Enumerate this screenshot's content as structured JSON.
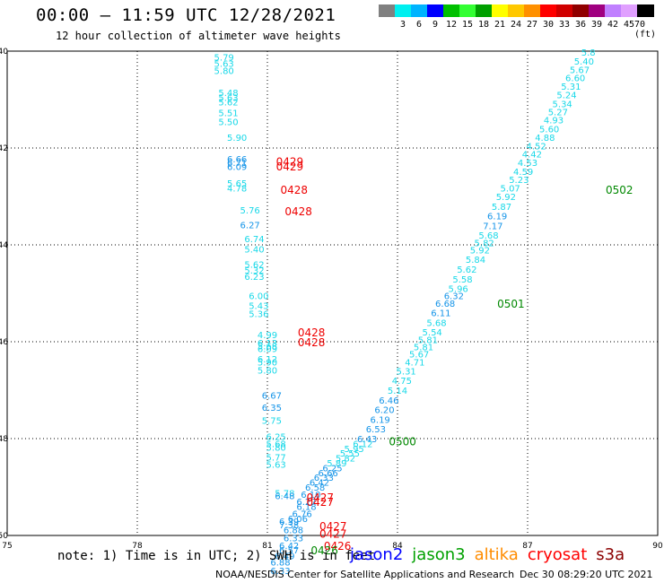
{
  "header": {
    "title": "00:00 – 11:59 UTC 12/28/2021",
    "subtitle": "12 hour collection of altimeter wave heights"
  },
  "color_scale": {
    "unit": "(ft)",
    "swatches": [
      {
        "color": "#808080",
        "label": ""
      },
      {
        "color": "#00f0f0",
        "label": "3"
      },
      {
        "color": "#00b4ff",
        "label": "6"
      },
      {
        "color": "#0000ff",
        "label": "9"
      },
      {
        "color": "#00c000",
        "label": "12"
      },
      {
        "color": "#33ff33",
        "label": "15"
      },
      {
        "color": "#00a000",
        "label": "18"
      },
      {
        "color": "#ffff00",
        "label": "21"
      },
      {
        "color": "#ffc800",
        "label": "24"
      },
      {
        "color": "#ff9000",
        "label": "27"
      },
      {
        "color": "#ff0000",
        "label": "30"
      },
      {
        "color": "#d00000",
        "label": "33"
      },
      {
        "color": "#900000",
        "label": "36"
      },
      {
        "color": "#a00080",
        "label": "39"
      },
      {
        "color": "#c080ff",
        "label": "42"
      },
      {
        "color": "#e0a0ff",
        "label": "45"
      },
      {
        "color": "#000000",
        "label": "70 (ft)"
      }
    ]
  },
  "chart_data": {
    "type": "scatter",
    "title": "00:00 – 11:59 UTC 12/28/2021",
    "subtitle": "12 hour collection of altimeter wave heights",
    "xlim": [
      75,
      90
    ],
    "ylim": [
      -50,
      -40
    ],
    "xticks": [
      "75",
      "78",
      "81",
      "84",
      "87",
      "90"
    ],
    "yticks": [
      "-40",
      "-42",
      "-44",
      "-46",
      "-48",
      "-50"
    ],
    "ytick_values": [
      -40,
      -42,
      -44,
      -46,
      -48,
      -50
    ],
    "xtick_values": [
      75,
      78,
      81,
      84,
      87,
      90
    ],
    "grid": true,
    "colors": {
      "light": "#18d8e8",
      "mid": "#1494e8",
      "time": "#ee0000",
      "jason3_time": "#008800"
    },
    "swh_points": [
      {
        "x": 80.0,
        "y": -40.12,
        "v": "5.79",
        "c": "light"
      },
      {
        "x": 80.0,
        "y": -40.25,
        "v": "5.63",
        "c": "light"
      },
      {
        "x": 80.0,
        "y": -40.4,
        "v": "5.80",
        "c": "light"
      },
      {
        "x": 80.1,
        "y": -40.85,
        "v": "5.48",
        "c": "light"
      },
      {
        "x": 80.1,
        "y": -40.95,
        "v": "5.63",
        "c": "light"
      },
      {
        "x": 80.1,
        "y": -41.05,
        "v": "5.62",
        "c": "light"
      },
      {
        "x": 80.1,
        "y": -41.27,
        "v": "5.51",
        "c": "light"
      },
      {
        "x": 80.1,
        "y": -41.45,
        "v": "5.50",
        "c": "light"
      },
      {
        "x": 80.3,
        "y": -41.78,
        "v": "5.90",
        "c": "light"
      },
      {
        "x": 80.3,
        "y": -42.22,
        "v": "6.66",
        "c": "mid"
      },
      {
        "x": 80.3,
        "y": -42.3,
        "v": "6.71",
        "c": "mid"
      },
      {
        "x": 80.3,
        "y": -42.38,
        "v": "6.09",
        "c": "mid"
      },
      {
        "x": 80.3,
        "y": -42.72,
        "v": "5.65",
        "c": "light"
      },
      {
        "x": 80.3,
        "y": -42.82,
        "v": "4.78",
        "c": "light"
      },
      {
        "x": 80.6,
        "y": -43.28,
        "v": "5.76",
        "c": "light"
      },
      {
        "x": 80.6,
        "y": -43.58,
        "v": "6.27",
        "c": "mid"
      },
      {
        "x": 80.7,
        "y": -43.87,
        "v": "6.74",
        "c": "light"
      },
      {
        "x": 80.7,
        "y": -44.08,
        "v": "5.40",
        "c": "light"
      },
      {
        "x": 80.7,
        "y": -44.4,
        "v": "5.62",
        "c": "light"
      },
      {
        "x": 80.7,
        "y": -44.52,
        "v": "5.32",
        "c": "light"
      },
      {
        "x": 80.7,
        "y": -44.65,
        "v": "6.23",
        "c": "light"
      },
      {
        "x": 80.8,
        "y": -45.05,
        "v": "6.00",
        "c": "light"
      },
      {
        "x": 80.8,
        "y": -45.25,
        "v": "5.43",
        "c": "light"
      },
      {
        "x": 80.8,
        "y": -45.42,
        "v": "5.36",
        "c": "light"
      },
      {
        "x": 81.0,
        "y": -45.85,
        "v": "4.99",
        "c": "light"
      },
      {
        "x": 81.0,
        "y": -46.02,
        "v": "6.13",
        "c": "light"
      },
      {
        "x": 81.0,
        "y": -46.08,
        "v": "5.68",
        "c": "light"
      },
      {
        "x": 81.0,
        "y": -46.14,
        "v": "6.09",
        "c": "light"
      },
      {
        "x": 81.0,
        "y": -46.35,
        "v": "6.12",
        "c": "light"
      },
      {
        "x": 81.0,
        "y": -46.42,
        "v": "5.90",
        "c": "light"
      },
      {
        "x": 81.0,
        "y": -46.58,
        "v": "5.80",
        "c": "light"
      },
      {
        "x": 81.1,
        "y": -47.1,
        "v": "6.67",
        "c": "mid"
      },
      {
        "x": 81.1,
        "y": -47.35,
        "v": "6.35",
        "c": "mid"
      },
      {
        "x": 81.1,
        "y": -47.62,
        "v": "5.75",
        "c": "light"
      },
      {
        "x": 81.2,
        "y": -47.95,
        "v": "6.25",
        "c": "light"
      },
      {
        "x": 81.2,
        "y": -48.1,
        "v": "5.68",
        "c": "light"
      },
      {
        "x": 81.2,
        "y": -48.18,
        "v": "5.80",
        "c": "light"
      },
      {
        "x": 81.2,
        "y": -48.38,
        "v": "5.77",
        "c": "light"
      },
      {
        "x": 81.2,
        "y": -48.53,
        "v": "5.63",
        "c": "light"
      },
      {
        "x": 81.4,
        "y": -49.12,
        "v": "5.78",
        "c": "light"
      },
      {
        "x": 81.4,
        "y": -49.18,
        "v": "6.48",
        "c": "mid"
      },
      {
        "x": 81.5,
        "y": -49.7,
        "v": "6.39",
        "c": "mid"
      },
      {
        "x": 81.5,
        "y": -49.78,
        "v": "7.38",
        "c": "mid"
      },
      {
        "x": 81.6,
        "y": -49.88,
        "v": "6.88",
        "c": "mid"
      },
      {
        "x": 81.6,
        "y": -50.05,
        "v": "6.33",
        "c": "mid"
      },
      {
        "x": 81.5,
        "y": -50.2,
        "v": "6.42",
        "c": "mid"
      },
      {
        "x": 81.5,
        "y": -50.3,
        "v": "6.57",
        "c": "mid"
      },
      {
        "x": 81.4,
        "y": -50.42,
        "v": "6.49",
        "c": "mid"
      },
      {
        "x": 81.3,
        "y": -50.55,
        "v": "6.88",
        "c": "mid"
      },
      {
        "x": 81.3,
        "y": -50.72,
        "v": "6.33",
        "c": "mid"
      },
      {
        "x": 81.7,
        "y": -49.65,
        "v": "6.06",
        "c": "mid"
      },
      {
        "x": 81.8,
        "y": -49.55,
        "v": "6.76",
        "c": "mid"
      },
      {
        "x": 81.9,
        "y": -49.4,
        "v": "6.18",
        "c": "mid"
      },
      {
        "x": 81.9,
        "y": -49.3,
        "v": "6.27",
        "c": "mid"
      },
      {
        "x": 82.0,
        "y": -49.15,
        "v": "6.10",
        "c": "mid"
      },
      {
        "x": 82.1,
        "y": -49.0,
        "v": "6.58",
        "c": "mid"
      },
      {
        "x": 82.2,
        "y": -48.9,
        "v": "6.42",
        "c": "mid"
      },
      {
        "x": 82.3,
        "y": -48.8,
        "v": "6.33",
        "c": "mid"
      },
      {
        "x": 82.4,
        "y": -48.7,
        "v": "6.66",
        "c": "mid"
      },
      {
        "x": 82.5,
        "y": -48.6,
        "v": "6.25",
        "c": "mid"
      },
      {
        "x": 82.6,
        "y": -48.5,
        "v": "5.89",
        "c": "light"
      },
      {
        "x": 82.8,
        "y": -48.4,
        "v": "5.82",
        "c": "light"
      },
      {
        "x": 82.9,
        "y": -48.3,
        "v": "5.55",
        "c": "light"
      },
      {
        "x": 83.0,
        "y": -48.2,
        "v": "5.95",
        "c": "light"
      },
      {
        "x": 83.2,
        "y": -48.1,
        "v": "6.12",
        "c": "light"
      },
      {
        "x": 83.3,
        "y": -48.0,
        "v": "6.43",
        "c": "mid"
      },
      {
        "x": 83.5,
        "y": -47.8,
        "v": "6.53",
        "c": "mid"
      },
      {
        "x": 83.6,
        "y": -47.6,
        "v": "6.19",
        "c": "mid"
      },
      {
        "x": 83.7,
        "y": -47.4,
        "v": "6.20",
        "c": "mid"
      },
      {
        "x": 83.8,
        "y": -47.2,
        "v": "6.46",
        "c": "mid"
      },
      {
        "x": 84.0,
        "y": -47.0,
        "v": "5.14",
        "c": "light"
      },
      {
        "x": 84.1,
        "y": -46.8,
        "v": "4.75",
        "c": "light"
      },
      {
        "x": 84.2,
        "y": -46.6,
        "v": "5.31",
        "c": "light"
      },
      {
        "x": 84.4,
        "y": -46.42,
        "v": "4.71",
        "c": "light"
      },
      {
        "x": 84.5,
        "y": -46.25,
        "v": "5.67",
        "c": "light"
      },
      {
        "x": 84.6,
        "y": -46.1,
        "v": "5.81",
        "c": "light"
      },
      {
        "x": 84.7,
        "y": -45.95,
        "v": "5.81",
        "c": "light"
      },
      {
        "x": 84.8,
        "y": -45.8,
        "v": "5.54",
        "c": "light"
      },
      {
        "x": 84.9,
        "y": -45.6,
        "v": "5.68",
        "c": "light"
      },
      {
        "x": 85.0,
        "y": -45.4,
        "v": "6.11",
        "c": "mid"
      },
      {
        "x": 85.1,
        "y": -45.2,
        "v": "6.68",
        "c": "mid"
      },
      {
        "x": 85.3,
        "y": -45.05,
        "v": "6.32",
        "c": "mid"
      },
      {
        "x": 85.4,
        "y": -44.9,
        "v": "5.96",
        "c": "light"
      },
      {
        "x": 85.5,
        "y": -44.7,
        "v": "5.58",
        "c": "light"
      },
      {
        "x": 85.6,
        "y": -44.5,
        "v": "5.62",
        "c": "light"
      },
      {
        "x": 85.8,
        "y": -44.3,
        "v": "5.84",
        "c": "light"
      },
      {
        "x": 85.9,
        "y": -44.1,
        "v": "5.92",
        "c": "light"
      },
      {
        "x": 86.0,
        "y": -43.95,
        "v": "5.82",
        "c": "light"
      },
      {
        "x": 86.1,
        "y": -43.8,
        "v": "5.68",
        "c": "light"
      },
      {
        "x": 86.2,
        "y": -43.6,
        "v": "7.17",
        "c": "mid"
      },
      {
        "x": 86.3,
        "y": -43.4,
        "v": "6.19",
        "c": "mid"
      },
      {
        "x": 86.4,
        "y": -43.2,
        "v": "5.87",
        "c": "light"
      },
      {
        "x": 86.5,
        "y": -43.0,
        "v": "5.92",
        "c": "light"
      },
      {
        "x": 86.6,
        "y": -42.82,
        "v": "5.07",
        "c": "light"
      },
      {
        "x": 86.8,
        "y": -42.65,
        "v": "5.23",
        "c": "light"
      },
      {
        "x": 86.9,
        "y": -42.48,
        "v": "4.59",
        "c": "light"
      },
      {
        "x": 87.0,
        "y": -42.3,
        "v": "4.53",
        "c": "light"
      },
      {
        "x": 87.1,
        "y": -42.12,
        "v": "4.42",
        "c": "light"
      },
      {
        "x": 87.2,
        "y": -41.95,
        "v": "4.52",
        "c": "light"
      },
      {
        "x": 87.4,
        "y": -41.78,
        "v": "4.88",
        "c": "light"
      },
      {
        "x": 87.5,
        "y": -41.6,
        "v": "5.60",
        "c": "light"
      },
      {
        "x": 87.6,
        "y": -41.42,
        "v": "4.93",
        "c": "light"
      },
      {
        "x": 87.7,
        "y": -41.25,
        "v": "5.27",
        "c": "light"
      },
      {
        "x": 87.8,
        "y": -41.08,
        "v": "5.34",
        "c": "light"
      },
      {
        "x": 87.9,
        "y": -40.9,
        "v": "5.24",
        "c": "light"
      },
      {
        "x": 88.0,
        "y": -40.72,
        "v": "5.31",
        "c": "light"
      },
      {
        "x": 88.1,
        "y": -40.55,
        "v": "6.60",
        "c": "light"
      },
      {
        "x": 88.2,
        "y": -40.38,
        "v": "5.67",
        "c": "light"
      },
      {
        "x": 88.3,
        "y": -40.2,
        "v": "5.40",
        "c": "light"
      },
      {
        "x": 88.4,
        "y": -40.02,
        "v": "5.8",
        "c": "light"
      }
    ],
    "time_labels": [
      {
        "x": 81.2,
        "y": -42.27,
        "v": "0429",
        "c": "time"
      },
      {
        "x": 81.2,
        "y": -42.37,
        "v": "0429",
        "c": "time"
      },
      {
        "x": 81.3,
        "y": -42.85,
        "v": "0428",
        "c": "time"
      },
      {
        "x": 81.4,
        "y": -43.3,
        "v": "0428",
        "c": "time"
      },
      {
        "x": 81.7,
        "y": -45.8,
        "v": "0428",
        "c": "time"
      },
      {
        "x": 81.7,
        "y": -46.0,
        "v": "0428",
        "c": "time"
      },
      {
        "x": 81.9,
        "y": -49.2,
        "v": "0427",
        "c": "time"
      },
      {
        "x": 81.9,
        "y": -49.3,
        "v": "0427",
        "c": "time"
      },
      {
        "x": 82.2,
        "y": -49.8,
        "v": "0427",
        "c": "time"
      },
      {
        "x": 82.2,
        "y": -49.95,
        "v": "0427",
        "c": "time"
      },
      {
        "x": 82.3,
        "y": -50.2,
        "v": "0426",
        "c": "time"
      },
      {
        "x": 82.0,
        "y": -50.3,
        "v": "0426",
        "c": "jason3_time"
      },
      {
        "x": 83.8,
        "y": -48.05,
        "v": "0500",
        "c": "jason3_time"
      },
      {
        "x": 86.3,
        "y": -45.2,
        "v": "0501",
        "c": "jason3_time"
      },
      {
        "x": 88.8,
        "y": -42.85,
        "v": "0502",
        "c": "jason3_time"
      }
    ]
  },
  "note": "note: 1) Time is in UTC; 2) SWH is in feet",
  "legend": [
    {
      "label": "jason2",
      "color": "#0000ff"
    },
    {
      "label": "jason3",
      "color": "#00a000"
    },
    {
      "label": "altika",
      "color": "#ff8c00"
    },
    {
      "label": "cryosat",
      "color": "#ff0000"
    },
    {
      "label": "s3a",
      "color": "#8b0000"
    }
  ],
  "footer": "NOAA/NESDIS Center for Satellite Applications and Research",
  "footer_timestamp": "Dec 30 08:29:20 UTC 2021"
}
